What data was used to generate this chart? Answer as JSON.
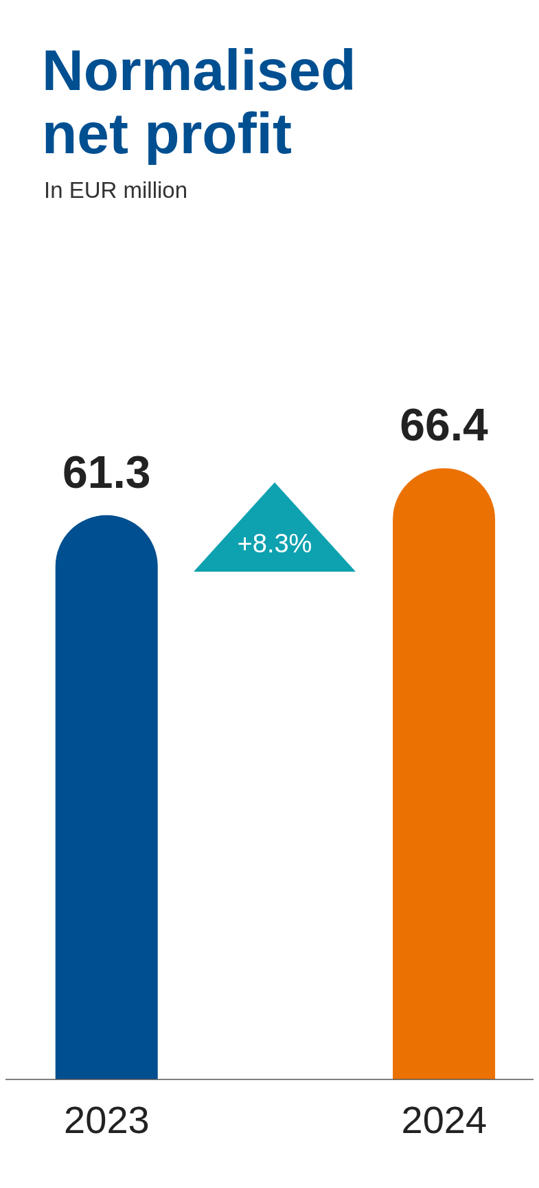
{
  "chart_data": {
    "type": "bar",
    "title": "Normalised net profit",
    "subtitle": "In EUR million",
    "categories": [
      "2023",
      "2024"
    ],
    "values": [
      61.3,
      66.4
    ],
    "colors": [
      "#004f90",
      "#eb7102"
    ],
    "data_labels": true,
    "annotations": [
      "+8.3%"
    ]
  }
}
